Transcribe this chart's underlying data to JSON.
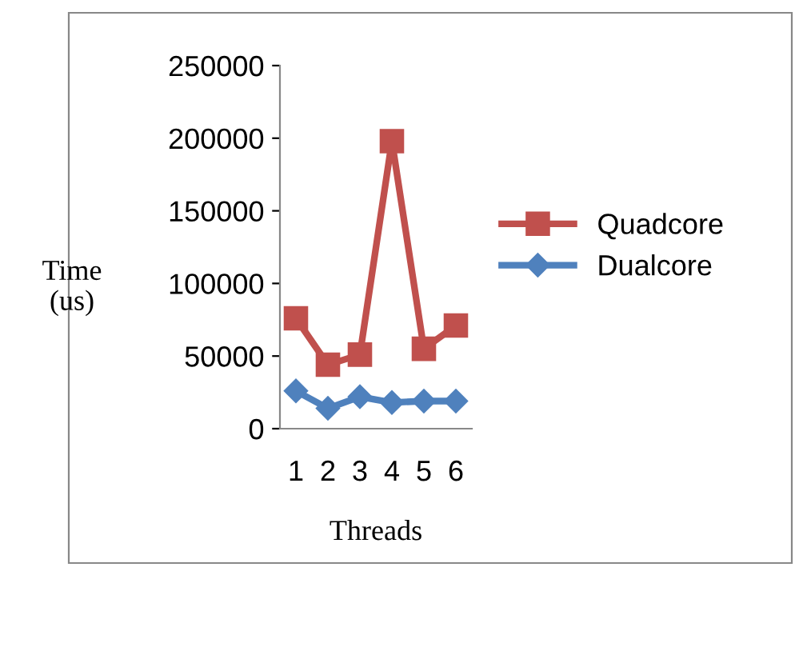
{
  "chart_data": {
    "type": "line",
    "xlabel": "Threads",
    "ylabel": "Time\n(us)",
    "categories": [
      "1",
      "2",
      "3",
      "4",
      "5",
      "6"
    ],
    "series": [
      {
        "name": "Quadcore",
        "color": "#c0504d",
        "marker": "square",
        "values": [
          76000,
          44000,
          51000,
          198000,
          55000,
          71000
        ]
      },
      {
        "name": "Dualcore",
        "color": "#4f81bd",
        "marker": "diamond",
        "values": [
          26000,
          14000,
          22000,
          18000,
          19000,
          19000
        ]
      }
    ],
    "ylim": [
      0,
      250000
    ],
    "yticks": [
      0,
      50000,
      100000,
      150000,
      200000,
      250000
    ],
    "grid": false,
    "legend": "right",
    "line_style": "solid"
  }
}
